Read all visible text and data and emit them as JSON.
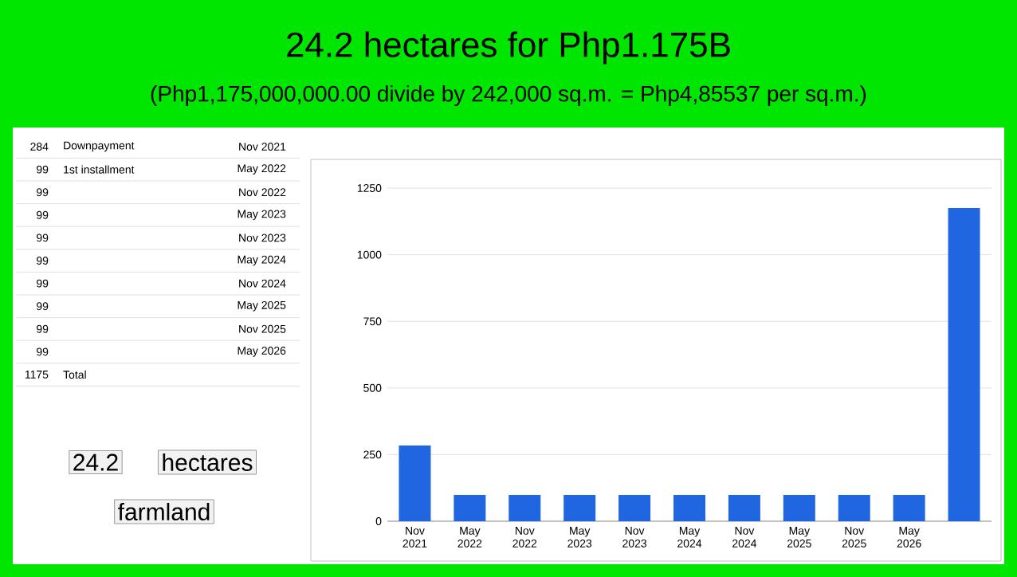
{
  "chart_data": {
    "type": "bar",
    "title": "24.2 hectares for Php1.175B",
    "subtitle": "(Php1,175,000,000.00 divide by 242,000 sq.m. = Php4,85537 per sq.m.)",
    "categories": [
      "Nov 2021",
      "May 2022",
      "Nov 2022",
      "May 2023",
      "Nov 2023",
      "May 2024",
      "Nov 2024",
      "May 2025",
      "Nov 2025",
      "May 2026",
      null
    ],
    "values": [
      284,
      99,
      99,
      99,
      99,
      99,
      99,
      99,
      99,
      99,
      1175
    ],
    "color": "#1f66e0",
    "ylim": [
      0,
      1250
    ],
    "yticks": [
      0,
      250,
      500,
      750,
      1000,
      1250
    ],
    "grid": "y",
    "annotations": [
      "284",
      "Downpayment",
      "Nov 2021",
      "99",
      "1st installment",
      "May 2022",
      "99",
      "Nov 2022",
      "99",
      "May 2023",
      "99",
      "Nov 2023",
      "99",
      "May 2024",
      "99",
      "Nov 2024",
      "99",
      "May 2025",
      "99",
      "Nov 2025",
      "99",
      "May 2026",
      "1175",
      "Total",
      "24.2",
      "hectares",
      "farmland"
    ]
  }
}
